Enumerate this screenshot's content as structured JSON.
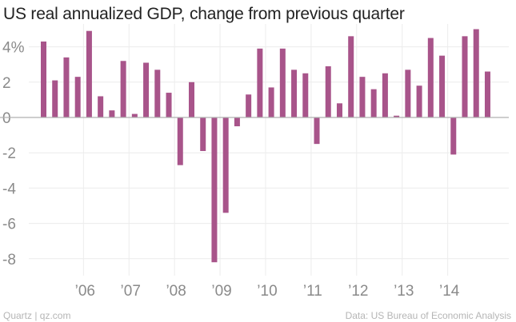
{
  "colors": {
    "bar": "#a8548a",
    "grid": "#ececec",
    "zero": "#b0b0b0",
    "tick_label": "#8a8a8a"
  },
  "footer": {
    "source_left": "Quartz | qz.com",
    "source_right": "Data: US Bureau of Economic Analysis"
  },
  "chart_data": {
    "type": "bar",
    "title": "US real annualized GDP, change from previous quarter",
    "xlabel": "",
    "ylabel": "",
    "ylim": [
      -8.2,
      5.0
    ],
    "y_ticks": [
      {
        "value": 4,
        "label": "4%"
      },
      {
        "value": 2,
        "label": "2"
      },
      {
        "value": 0,
        "label": "0"
      },
      {
        "value": -2,
        "label": "-2"
      },
      {
        "value": -4,
        "label": "-4"
      },
      {
        "value": -6,
        "label": "-6"
      },
      {
        "value": -8,
        "label": "-8"
      }
    ],
    "x_ticks": [
      {
        "label": "’06",
        "index": 3
      },
      {
        "label": "’07",
        "index": 7
      },
      {
        "label": "’08",
        "index": 11
      },
      {
        "label": "’09",
        "index": 15
      },
      {
        "label": "’10",
        "index": 19
      },
      {
        "label": "’11",
        "index": 23
      },
      {
        "label": "’12",
        "index": 27
      },
      {
        "label": "’13",
        "index": 31
      },
      {
        "label": "’14",
        "index": 35
      }
    ],
    "categories": [
      "2005Q1",
      "2005Q2",
      "2005Q3",
      "2005Q4",
      "2006Q1",
      "2006Q2",
      "2006Q3",
      "2006Q4",
      "2007Q1",
      "2007Q2",
      "2007Q3",
      "2007Q4",
      "2008Q1",
      "2008Q2",
      "2008Q3",
      "2008Q4",
      "2009Q1",
      "2009Q2",
      "2009Q3",
      "2009Q4",
      "2010Q1",
      "2010Q2",
      "2010Q3",
      "2010Q4",
      "2011Q1",
      "2011Q2",
      "2011Q3",
      "2011Q4",
      "2012Q1",
      "2012Q2",
      "2012Q3",
      "2012Q4",
      "2013Q1",
      "2013Q2",
      "2013Q3",
      "2013Q4",
      "2014Q1",
      "2014Q2",
      "2014Q3",
      "2014Q4"
    ],
    "values": [
      4.3,
      2.1,
      3.4,
      2.3,
      4.9,
      1.2,
      0.4,
      3.2,
      0.2,
      3.1,
      2.7,
      1.4,
      -2.7,
      2.0,
      -1.9,
      -8.2,
      -5.4,
      -0.5,
      1.3,
      3.9,
      1.7,
      3.9,
      2.7,
      2.5,
      -1.5,
      2.9,
      0.8,
      4.6,
      2.3,
      1.6,
      2.5,
      0.1,
      2.7,
      1.8,
      4.5,
      3.5,
      -2.1,
      4.6,
      5.0,
      2.6
    ]
  }
}
